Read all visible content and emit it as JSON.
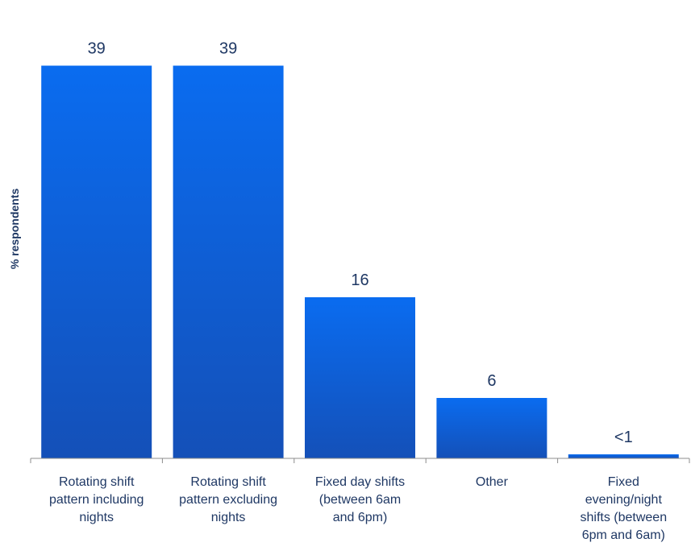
{
  "chart_data": {
    "type": "bar",
    "ylabel": "% respondents",
    "categories": [
      [
        "Rotating shift",
        "pattern including",
        "nights"
      ],
      [
        "Rotating shift",
        "pattern excluding",
        "nights"
      ],
      [
        "Fixed day shifts",
        "(between 6am",
        "and 6pm)"
      ],
      [
        "Other"
      ],
      [
        "Fixed",
        "evening/night",
        "shifts (between",
        "6pm and 6am)"
      ]
    ],
    "values": [
      39,
      39,
      16,
      6,
      0.4
    ],
    "value_labels": [
      "39",
      "39",
      "16",
      "6",
      "<1"
    ],
    "ylim": [
      0,
      41
    ],
    "grid": false,
    "bar_color": "#0a6cf0",
    "bar_color_dark": "#1450b8",
    "axis_color": "#8c8c8c",
    "text_color": "#1f3864"
  }
}
